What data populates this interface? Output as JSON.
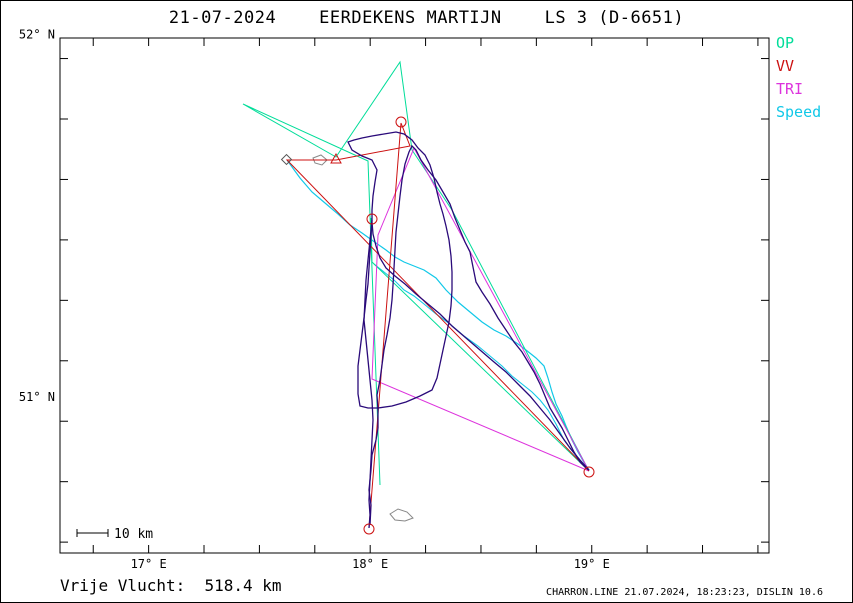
{
  "title": "21-07-2024    EERDEKENS MARTIJN    LS 3 (D-6651)",
  "legend": [
    {
      "label": "OP",
      "color": "#00dd99"
    },
    {
      "label": "VV",
      "color": "#cc1111"
    },
    {
      "label": "TRI",
      "color": "#dd33dd"
    },
    {
      "label": "Speed",
      "color": "#11c8e8"
    }
  ],
  "axes": {
    "lat_labels": [
      {
        "value": 52,
        "text": "52° N"
      },
      {
        "value": 51,
        "text": "51° N"
      }
    ],
    "lon_labels": [
      {
        "value": 17,
        "text": "17° E"
      },
      {
        "value": 18,
        "text": "18° E"
      },
      {
        "value": 19,
        "text": "19° E"
      }
    ],
    "lon_range": [
      16.6,
      19.8
    ],
    "lat_range": [
      50.57,
      51.99
    ]
  },
  "scale_bar": {
    "text": "10 km"
  },
  "distance_text": "Vrije Vlucht:  518.4 km",
  "footer_text": "CHARRON.LINE 21.07.2024, 18:23:23, DISLIN 10.6",
  "turnpoints": [
    {
      "lon": 18.01,
      "lat": 50.625
    },
    {
      "lon": 18.15,
      "lat": 51.775
    },
    {
      "lon": 17.85,
      "lat": 51.675
    },
    {
      "lon": 18.94,
      "lat": 50.805
    },
    {
      "lon": 18.02,
      "lat": 51.51
    }
  ]
}
